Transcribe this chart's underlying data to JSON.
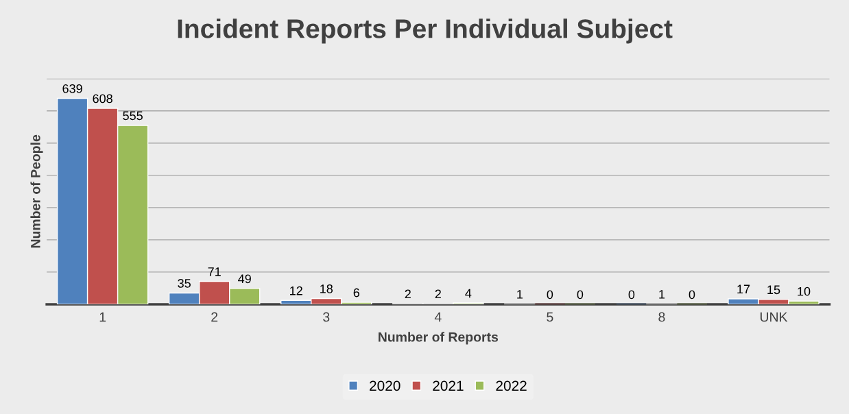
{
  "chart_data": {
    "type": "bar",
    "title": "Incident Reports Per Individual Subject",
    "xlabel": "Number of Reports",
    "ylabel": "Number of People",
    "categories": [
      "1",
      "2",
      "3",
      "4",
      "5",
      "8",
      "UNK"
    ],
    "series": [
      {
        "name": "2020",
        "color": "#4f81bd",
        "values": [
          639,
          35,
          12,
          2,
          1,
          0,
          17
        ]
      },
      {
        "name": "2021",
        "color": "#c0504d",
        "values": [
          608,
          71,
          18,
          2,
          0,
          1,
          15
        ]
      },
      {
        "name": "2022",
        "color": "#9bbb59",
        "values": [
          555,
          49,
          6,
          4,
          0,
          0,
          10
        ]
      }
    ],
    "ylim": [
      0,
      700
    ],
    "yticks": [
      {
        "value": 0,
        "label": null
      },
      {
        "value": 100,
        "label": null
      },
      {
        "value": 200,
        "label": null
      },
      {
        "value": 300,
        "label": null
      },
      {
        "value": 400,
        "label": null
      },
      {
        "value": 500,
        "label": null
      },
      {
        "value": 600,
        "label": null
      },
      {
        "value": 700,
        "label": null
      }
    ],
    "tick_labels": "x",
    "grid": "y",
    "legend": "bottom",
    "data_labels": true
  }
}
